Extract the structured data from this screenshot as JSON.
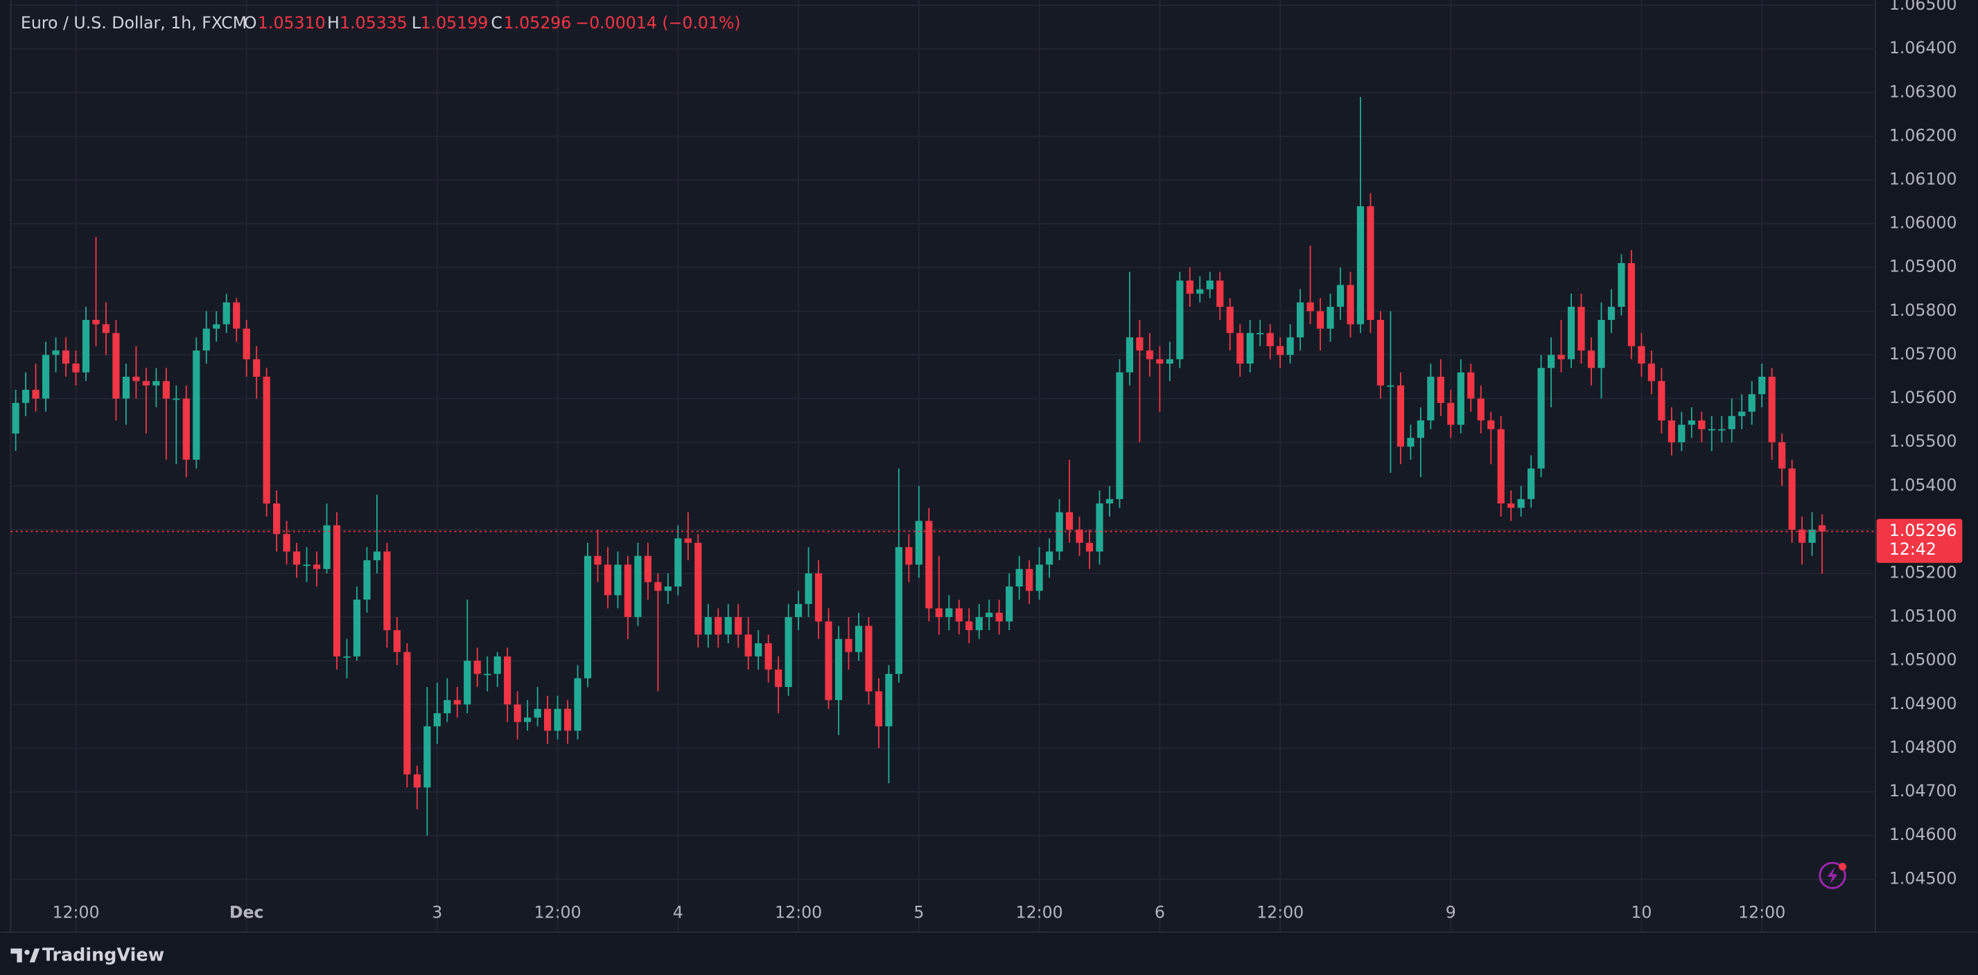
{
  "chart_data": {
    "type": "candlestick",
    "legend": {
      "title": "Euro / U.S. Dollar, 1h, FXCM",
      "items": [
        {
          "label": "O",
          "value": "1.05310"
        },
        {
          "label": "H",
          "value": "1.05335"
        },
        {
          "label": "L",
          "value": "1.05199"
        },
        {
          "label": "C",
          "value": "1.05296"
        }
      ],
      "change": "−0.00014 (−0.01%)"
    },
    "brand": "TradingView",
    "up_color": "#22ab94",
    "down_color": "#f23645",
    "grid": true,
    "last_price": {
      "value": 1.05296,
      "label": "1.05296"
    },
    "countdown": "12:42",
    "ylim": [
      1.04379,
      1.06512
    ],
    "yticks": [
      {
        "value": 1.045,
        "label": "1.04500"
      },
      {
        "value": 1.046,
        "label": "1.04600"
      },
      {
        "value": 1.047,
        "label": "1.04700"
      },
      {
        "value": 1.048,
        "label": "1.04800"
      },
      {
        "value": 1.049,
        "label": "1.04900"
      },
      {
        "value": 1.05,
        "label": "1.05000"
      },
      {
        "value": 1.051,
        "label": "1.05100"
      },
      {
        "value": 1.052,
        "label": "1.05200"
      },
      {
        "value": 1.053,
        "label": "1.05300"
      },
      {
        "value": 1.054,
        "label": "1.05400"
      },
      {
        "value": 1.055,
        "label": "1.05500"
      },
      {
        "value": 1.056,
        "label": "1.05600"
      },
      {
        "value": 1.057,
        "label": "1.05700"
      },
      {
        "value": 1.058,
        "label": "1.05800"
      },
      {
        "value": 1.059,
        "label": "1.05900"
      },
      {
        "value": 1.06,
        "label": "1.06000"
      },
      {
        "value": 1.061,
        "label": "1.06100"
      },
      {
        "value": 1.062,
        "label": "1.06200"
      },
      {
        "value": 1.063,
        "label": "1.06300"
      },
      {
        "value": 1.064,
        "label": "1.06400"
      },
      {
        "value": 1.065,
        "label": "1.06500"
      }
    ],
    "categories": [
      null,
      null,
      null,
      null,
      null,
      null,
      "12:00",
      null,
      null,
      null,
      null,
      null,
      null,
      null,
      null,
      null,
      null,
      null,
      null,
      null,
      null,
      null,
      null,
      "Dec",
      null,
      null,
      null,
      null,
      null,
      null,
      null,
      null,
      null,
      null,
      null,
      null,
      null,
      null,
      null,
      null,
      null,
      null,
      "3",
      null,
      null,
      null,
      null,
      null,
      null,
      null,
      null,
      null,
      null,
      null,
      "12:00",
      null,
      null,
      null,
      null,
      null,
      null,
      null,
      null,
      null,
      null,
      null,
      "4",
      null,
      null,
      null,
      null,
      null,
      null,
      null,
      null,
      null,
      null,
      null,
      "12:00",
      null,
      null,
      null,
      null,
      null,
      null,
      null,
      null,
      null,
      null,
      null,
      "5",
      null,
      null,
      null,
      null,
      null,
      null,
      null,
      null,
      null,
      null,
      null,
      "12:00",
      null,
      null,
      null,
      null,
      null,
      null,
      null,
      null,
      null,
      null,
      null,
      "6",
      null,
      null,
      null,
      null,
      null,
      null,
      null,
      null,
      null,
      null,
      null,
      "12:00",
      null,
      null,
      null,
      null,
      null,
      null,
      null,
      null,
      null,
      null,
      null,
      null,
      null,
      null,
      null,
      null,
      "9",
      null,
      null,
      null,
      null,
      null,
      null,
      null,
      null,
      null,
      null,
      null,
      null,
      null,
      null,
      null,
      null,
      null,
      null,
      "10",
      null,
      null,
      null,
      null,
      null,
      null,
      null,
      null,
      null,
      null,
      null,
      "12:00",
      null,
      null,
      null,
      null,
      null,
      null
    ],
    "open": [
      1.0552,
      1.0559,
      1.0562,
      1.056,
      1.057,
      1.0571,
      1.0568,
      1.0566,
      1.0578,
      1.0577,
      1.0575,
      1.056,
      1.0565,
      1.0564,
      1.0563,
      1.0564,
      1.056,
      1.056,
      1.0546,
      1.0571,
      1.0576,
      1.0577,
      1.0582,
      1.0576,
      1.0569,
      1.0565,
      1.0536,
      1.0529,
      1.0525,
      1.0522,
      1.0522,
      1.0521,
      1.0531,
      1.0501,
      1.0501,
      1.0514,
      1.0523,
      1.0525,
      1.0507,
      1.0502,
      1.0474,
      1.0471,
      1.0485,
      1.0488,
      1.0491,
      1.049,
      1.05,
      1.0497,
      1.0497,
      1.0501,
      1.049,
      1.0486,
      1.0487,
      1.0489,
      1.0484,
      1.0489,
      1.0484,
      1.0496,
      1.0524,
      1.0522,
      1.0515,
      1.0522,
      1.051,
      1.0524,
      1.0518,
      1.0516,
      1.0517,
      1.0528,
      1.0527,
      1.0506,
      1.051,
      1.0506,
      1.051,
      1.0506,
      1.0501,
      1.0504,
      1.0498,
      1.0494,
      1.051,
      1.0513,
      1.052,
      1.0509,
      1.0491,
      1.0505,
      1.0502,
      1.0508,
      1.0493,
      1.0485,
      1.0497,
      1.0526,
      1.0522,
      1.0532,
      1.0512,
      1.051,
      1.0512,
      1.0509,
      1.0507,
      1.051,
      1.0511,
      1.0509,
      1.0517,
      1.0521,
      1.0516,
      1.0522,
      1.0525,
      1.0534,
      1.053,
      1.0527,
      1.0525,
      1.0536,
      1.0537,
      1.0566,
      1.0574,
      1.0571,
      1.0569,
      1.0568,
      1.0569,
      1.0587,
      1.0584,
      1.0585,
      1.0587,
      1.0581,
      1.0575,
      1.0568,
      1.0575,
      1.0575,
      1.0572,
      1.057,
      1.0574,
      1.0582,
      1.058,
      1.0576,
      1.0581,
      1.0586,
      1.0577,
      1.0604,
      1.0578,
      1.0563,
      1.0563,
      1.0549,
      1.0551,
      1.0555,
      1.0565,
      1.0559,
      1.0554,
      1.0566,
      1.056,
      1.0555,
      1.0553,
      1.0536,
      1.0535,
      1.0537,
      1.0544,
      1.0567,
      1.057,
      1.0569,
      1.0581,
      1.0571,
      1.0567,
      1.0578,
      1.0581,
      1.0591,
      1.0572,
      1.0568,
      1.0564,
      1.0555,
      1.055,
      1.0554,
      1.0555,
      1.0553,
      1.0553,
      1.0553,
      1.0556,
      1.0557,
      1.0561,
      1.0565,
      1.055,
      1.0544,
      1.053,
      1.0527,
      1.0531
    ],
    "high": [
      1.0562,
      1.0566,
      1.0568,
      1.0573,
      1.0574,
      1.0574,
      1.0571,
      1.0581,
      1.0597,
      1.0582,
      1.0578,
      1.0568,
      1.0572,
      1.0567,
      1.0567,
      1.0567,
      1.0563,
      1.0563,
      1.0574,
      1.058,
      1.058,
      1.0584,
      1.0583,
      1.0578,
      1.0572,
      1.0567,
      1.0539,
      1.0532,
      1.0527,
      1.0526,
      1.0525,
      1.0536,
      1.0534,
      1.0505,
      1.0517,
      1.0526,
      1.0538,
      1.0527,
      1.051,
      1.0504,
      1.0476,
      1.0494,
      1.0495,
      1.0496,
      1.0494,
      1.0514,
      1.0503,
      1.0501,
      1.0502,
      1.0503,
      1.0493,
      1.0491,
      1.0494,
      1.0492,
      1.0492,
      1.0491,
      1.0499,
      1.0527,
      1.053,
      1.0526,
      1.0525,
      1.0524,
      1.0527,
      1.0527,
      1.052,
      1.052,
      1.0531,
      1.0534,
      1.0529,
      1.0513,
      1.0512,
      1.0513,
      1.0513,
      1.051,
      1.0507,
      1.0506,
      1.0501,
      1.0513,
      1.0516,
      1.0526,
      1.0523,
      1.0512,
      1.0508,
      1.051,
      1.0511,
      1.051,
      1.0496,
      1.0499,
      1.0544,
      1.0529,
      1.054,
      1.0535,
      1.0524,
      1.0515,
      1.0514,
      1.0512,
      1.0513,
      1.0514,
      1.0514,
      1.052,
      1.0524,
      1.0523,
      1.0526,
      1.0528,
      1.0537,
      1.0546,
      1.0533,
      1.053,
      1.0539,
      1.054,
      1.0569,
      1.0589,
      1.0578,
      1.0575,
      1.0572,
      1.0573,
      1.0589,
      1.059,
      1.0588,
      1.0589,
      1.0589,
      1.0583,
      1.0577,
      1.0578,
      1.0578,
      1.0577,
      1.0574,
      1.0577,
      1.0585,
      1.0595,
      1.0583,
      1.0584,
      1.059,
      1.0589,
      1.0629,
      1.0607,
      1.058,
      1.058,
      1.0566,
      1.0554,
      1.0558,
      1.0568,
      1.0569,
      1.0562,
      1.0569,
      1.0568,
      1.0563,
      1.0557,
      1.0556,
      1.0539,
      1.054,
      1.0547,
      1.057,
      1.0574,
      1.0578,
      1.0584,
      1.0584,
      1.0574,
      1.0582,
      1.0585,
      1.0593,
      1.0594,
      1.0575,
      1.0571,
      1.0567,
      1.0558,
      1.0557,
      1.0558,
      1.0557,
      1.0556,
      1.0556,
      1.056,
      1.0561,
      1.0564,
      1.0568,
      1.0567,
      1.0552,
      1.0546,
      1.0533,
      1.0534,
      1.05335
    ],
    "low": [
      1.0548,
      1.0556,
      1.0557,
      1.0557,
      1.0566,
      1.0565,
      1.0563,
      1.0564,
      1.0572,
      1.057,
      1.0555,
      1.0554,
      1.056,
      1.0552,
      1.0558,
      1.0546,
      1.0545,
      1.0542,
      1.0544,
      1.0568,
      1.0573,
      1.0575,
      1.0573,
      1.0565,
      1.056,
      1.0533,
      1.0525,
      1.0522,
      1.0519,
      1.0518,
      1.0517,
      1.052,
      1.0498,
      1.0496,
      1.05,
      1.0511,
      1.052,
      1.0503,
      1.0499,
      1.0471,
      1.0466,
      1.046,
      1.0481,
      1.0486,
      1.0487,
      1.0488,
      1.0494,
      1.0493,
      1.0494,
      1.0486,
      1.0482,
      1.0484,
      1.0485,
      1.0481,
      1.0482,
      1.0481,
      1.0482,
      1.0494,
      1.0518,
      1.0512,
      1.0512,
      1.0505,
      1.0508,
      1.0514,
      1.0493,
      1.0513,
      1.0515,
      1.0523,
      1.0503,
      1.0503,
      1.0503,
      1.0504,
      1.0503,
      1.0498,
      1.0498,
      1.0495,
      1.0488,
      1.0492,
      1.0507,
      1.051,
      1.0505,
      1.0489,
      1.0483,
      1.0498,
      1.05,
      1.049,
      1.048,
      1.0472,
      1.0495,
      1.0518,
      1.0519,
      1.0509,
      1.0506,
      1.0507,
      1.0506,
      1.0504,
      1.0505,
      1.0507,
      1.0506,
      1.0507,
      1.0514,
      1.0513,
      1.0514,
      1.0519,
      1.0523,
      1.0527,
      1.0524,
      1.0521,
      1.0522,
      1.0533,
      1.0535,
      1.0563,
      1.055,
      1.0565,
      1.0557,
      1.0564,
      1.0567,
      1.0581,
      1.0582,
      1.0583,
      1.0578,
      1.0571,
      1.0565,
      1.0566,
      1.0572,
      1.0569,
      1.0567,
      1.0568,
      1.0571,
      1.0577,
      1.0571,
      1.0573,
      1.0578,
      1.0574,
      1.0575,
      1.0575,
      1.056,
      1.0543,
      1.0545,
      1.0546,
      1.0542,
      1.0553,
      1.0556,
      1.0551,
      1.0552,
      1.0557,
      1.0552,
      1.0545,
      1.0533,
      1.0532,
      1.0533,
      1.0535,
      1.0542,
      1.0558,
      1.0566,
      1.0567,
      1.0568,
      1.0563,
      1.056,
      1.0575,
      1.0579,
      1.0569,
      1.0565,
      1.0561,
      1.0552,
      1.0547,
      1.0548,
      1.0551,
      1.055,
      1.0548,
      1.055,
      1.055,
      1.0553,
      1.0554,
      1.0558,
      1.0546,
      1.054,
      1.0527,
      1.0522,
      1.0524,
      1.05199
    ],
    "close": [
      1.0559,
      1.0562,
      1.056,
      1.057,
      1.0571,
      1.0568,
      1.0566,
      1.0578,
      1.0577,
      1.0575,
      1.056,
      1.0565,
      1.0564,
      1.0563,
      1.0564,
      1.056,
      1.056,
      1.0546,
      1.0571,
      1.0576,
      1.0577,
      1.0582,
      1.0576,
      1.0569,
      1.0565,
      1.0536,
      1.0529,
      1.0525,
      1.0522,
      1.0522,
      1.0521,
      1.0531,
      1.0501,
      1.0501,
      1.0514,
      1.0523,
      1.0525,
      1.0507,
      1.0502,
      1.0474,
      1.0471,
      1.0485,
      1.0488,
      1.0491,
      1.049,
      1.05,
      1.0497,
      1.0497,
      1.0501,
      1.049,
      1.0486,
      1.0487,
      1.0489,
      1.0484,
      1.0489,
      1.0484,
      1.0496,
      1.0524,
      1.0522,
      1.0515,
      1.0522,
      1.051,
      1.0524,
      1.0518,
      1.0516,
      1.0517,
      1.0528,
      1.0527,
      1.0506,
      1.051,
      1.0506,
      1.051,
      1.0506,
      1.0501,
      1.0504,
      1.0498,
      1.0494,
      1.051,
      1.0513,
      1.052,
      1.0509,
      1.0491,
      1.0505,
      1.0502,
      1.0508,
      1.0493,
      1.0485,
      1.0497,
      1.0526,
      1.0522,
      1.0532,
      1.0512,
      1.051,
      1.0512,
      1.0509,
      1.0507,
      1.051,
      1.0511,
      1.0509,
      1.0517,
      1.0521,
      1.0516,
      1.0522,
      1.0525,
      1.0534,
      1.053,
      1.0527,
      1.0525,
      1.0536,
      1.0537,
      1.0566,
      1.0574,
      1.0571,
      1.0569,
      1.0568,
      1.0569,
      1.0587,
      1.0584,
      1.0585,
      1.0587,
      1.0581,
      1.0575,
      1.0568,
      1.0575,
      1.0575,
      1.0572,
      1.057,
      1.0574,
      1.0582,
      1.058,
      1.0576,
      1.0581,
      1.0586,
      1.0577,
      1.0604,
      1.0578,
      1.0563,
      1.0563,
      1.0549,
      1.0551,
      1.0555,
      1.0565,
      1.0559,
      1.0554,
      1.0566,
      1.056,
      1.0555,
      1.0553,
      1.0536,
      1.0535,
      1.0537,
      1.0544,
      1.0567,
      1.057,
      1.0569,
      1.0581,
      1.0571,
      1.0567,
      1.0578,
      1.0581,
      1.0591,
      1.0572,
      1.0568,
      1.0564,
      1.0555,
      1.055,
      1.0554,
      1.0555,
      1.0553,
      1.0553,
      1.0553,
      1.0556,
      1.0557,
      1.0561,
      1.0565,
      1.055,
      1.0544,
      1.053,
      1.0527,
      1.053,
      1.05296
    ]
  }
}
